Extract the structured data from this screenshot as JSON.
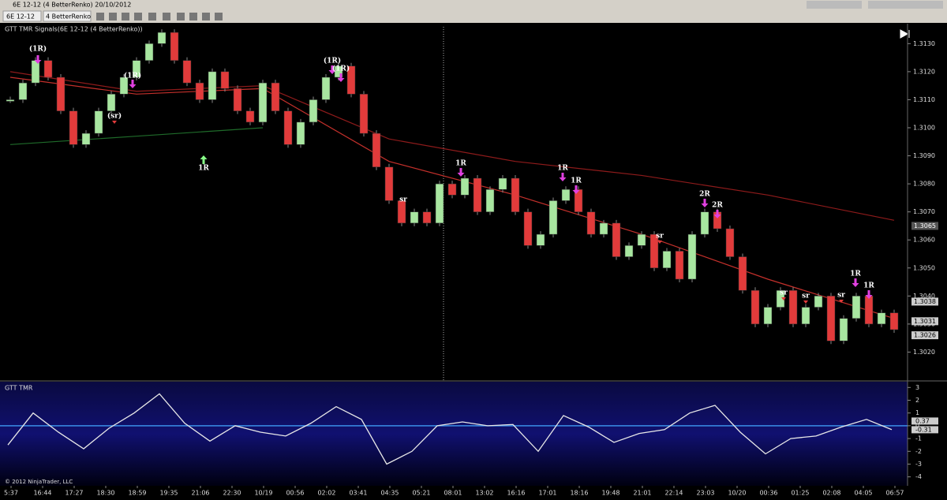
{
  "window": {
    "title": "6E 12-12 (4 BetterRenko)  20/10/2012"
  },
  "toolbar": {
    "instrument": "6E 12-12",
    "bar_type": "4 BetterRenko"
  },
  "chart_data": [
    {
      "type": "candlestick",
      "title": "GTT TMR Signals(6E 12-12 (4 BetterRenko))",
      "up_color": "#a8e6a0",
      "down_color": "#e23b3b",
      "closes": [
        1.311,
        1.3116,
        1.3124,
        1.3118,
        1.3106,
        1.3094,
        1.3098,
        1.3106,
        1.3112,
        1.3118,
        1.3124,
        1.313,
        1.3134,
        1.3124,
        1.3116,
        1.311,
        1.312,
        1.3114,
        1.3106,
        1.3102,
        1.3116,
        1.3106,
        1.3094,
        1.3102,
        1.311,
        1.3118,
        1.3122,
        1.3112,
        1.3098,
        1.3086,
        1.3074,
        1.3066,
        1.307,
        1.3066,
        1.308,
        1.3076,
        1.3082,
        1.307,
        1.3078,
        1.3082,
        1.307,
        1.3058,
        1.3062,
        1.3074,
        1.3078,
        1.307,
        1.3062,
        1.3066,
        1.3054,
        1.3058,
        1.3062,
        1.305,
        1.3056,
        1.3046,
        1.3062,
        1.307,
        1.3064,
        1.3054,
        1.3042,
        1.303,
        1.3036,
        1.3042,
        1.303,
        1.3036,
        1.304,
        1.3024,
        1.3032,
        1.304,
        1.303,
        1.3034,
        1.3028
      ],
      "lines": [
        {
          "color": "#8e1b1b",
          "values": [
            1.312,
            1.3113,
            1.3115,
            1.3096,
            1.3088,
            1.3083,
            1.3076,
            1.3067
          ]
        },
        {
          "color": "#c4302b",
          "values": [
            1.3118,
            1.3112,
            1.3114,
            1.3088,
            1.3076,
            1.3062,
            1.3046,
            1.3032
          ]
        },
        {
          "color": "#1f6b2a",
          "values": [
            1.3094,
            1.3097,
            1.31,
            null,
            null,
            null,
            null,
            null
          ]
        }
      ],
      "ylim": [
        1.301,
        1.3136
      ],
      "yticks": [
        {
          "value": 1.302,
          "label": "1.3020"
        },
        {
          "value": 1.303,
          "label": "1.3030"
        },
        {
          "value": 1.304,
          "label": "1.3040"
        },
        {
          "value": 1.305,
          "label": "1.3050"
        },
        {
          "value": 1.306,
          "label": "1.3060"
        },
        {
          "value": 1.307,
          "label": "1.3070"
        },
        {
          "value": 1.308,
          "label": "1.3080"
        },
        {
          "value": 1.309,
          "label": "1.3090"
        },
        {
          "value": 1.31,
          "label": "1.3100"
        },
        {
          "value": 1.311,
          "label": "1.3110"
        },
        {
          "value": 1.312,
          "label": "1.3120"
        },
        {
          "value": 1.313,
          "label": "1.3130"
        }
      ],
      "price_flags": [
        {
          "value": 1.3065,
          "label": "1.3065"
        },
        {
          "value": 1.3038,
          "label": "1.3038"
        },
        {
          "value": 1.3031,
          "label": "1.3031"
        },
        {
          "value": 1.3026,
          "label": "1.3026"
        }
      ],
      "annotations": [
        "(1R)",
        "(1R)",
        "(sr)",
        "1R",
        "(1R)",
        "(1R)",
        "sr",
        "1R",
        "1R",
        "1R",
        "sr",
        "2R",
        "2R",
        "sr",
        "sr",
        "sr",
        "1R",
        "1R"
      ]
    },
    {
      "type": "line",
      "title": "GTT TMR",
      "color": "#e8e8e8",
      "zero_line": 0,
      "values": [
        -1.5,
        1.0,
        -0.5,
        -1.8,
        -0.2,
        1.0,
        2.5,
        0.2,
        -1.2,
        0.0,
        -0.5,
        -0.8,
        0.2,
        1.5,
        0.5,
        -3.0,
        -2.0,
        0.0,
        0.3,
        0.0,
        0.1,
        -2.0,
        0.8,
        -0.1,
        -1.3,
        -0.6,
        -0.3,
        1.0,
        1.6,
        -0.5,
        -2.2,
        -1.0,
        -0.8,
        -0.1,
        0.5,
        -0.3
      ],
      "ylim": [
        -4.7,
        3.45
      ],
      "yticks": [
        -4,
        -3,
        -2,
        -1,
        0,
        1,
        2,
        3
      ],
      "flags": [
        {
          "value": 0.37,
          "label": "0.37"
        },
        {
          "value": -0.31,
          "label": "-0.31"
        }
      ]
    }
  ],
  "time_axis": [
    "5:37",
    "16:44",
    "17:27",
    "18:30",
    "18:59",
    "19:35",
    "21:06",
    "22:30",
    "10/19",
    "00:56",
    "02:02",
    "03:41",
    "04:35",
    "05:21",
    "08:01",
    "13:02",
    "16:16",
    "17:01",
    "18:16",
    "19:48",
    "21:01",
    "22:14",
    "23:03",
    "10/20",
    "00:36",
    "01:25",
    "02:08",
    "04:05",
    "06:57"
  ],
  "footer": "© 2012 NinjaTrader, LLC"
}
